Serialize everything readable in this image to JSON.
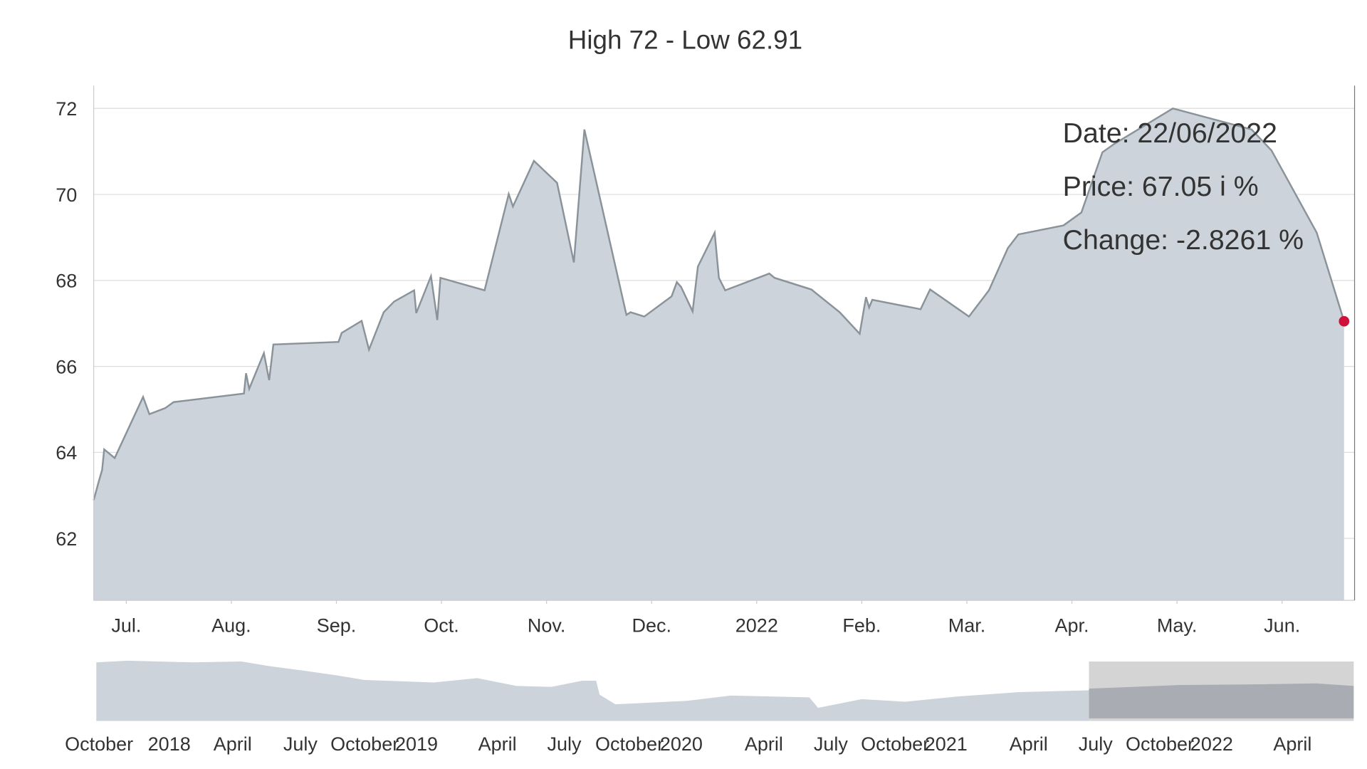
{
  "chart_data": {
    "type": "area",
    "title": "High 72 - Low 62.91",
    "x": [
      6.69,
      6.74,
      6.77,
      6.79,
      6.89,
      7.16,
      7.22,
      7.37,
      7.45,
      8.12,
      8.14,
      8.17,
      8.31,
      8.36,
      8.4,
      9.02,
      9.05,
      9.24,
      9.31,
      9.45,
      9.55,
      9.74,
      9.76,
      9.9,
      9.96,
      9.99,
      10.41,
      10.64,
      10.68,
      10.88,
      11.1,
      11.26,
      11.36,
      11.76,
      11.8,
      11.93,
      12.19,
      12.24,
      12.28,
      12.39,
      12.44,
      12.6,
      12.64,
      12.7,
      13.12,
      13.17,
      13.52,
      13.79,
      13.98,
      14.04,
      14.07,
      14.1,
      14.56,
      14.65,
      15.02,
      15.21,
      15.39,
      15.49,
      15.92,
      16.09,
      16.29,
      16.4,
      16.96,
      17.71,
      17.9,
      18.33,
      18.59
    ],
    "series": [
      {
        "name": "Price",
        "color": "#8a9399",
        "values": [
          62.89,
          63.34,
          63.59,
          64.07,
          63.87,
          65.29,
          64.89,
          65.03,
          65.17,
          65.37,
          65.84,
          65.48,
          66.31,
          65.68,
          66.51,
          66.57,
          66.78,
          67.06,
          66.39,
          67.26,
          67.51,
          67.77,
          67.24,
          68.1,
          67.08,
          68.06,
          67.77,
          70.01,
          69.72,
          70.78,
          70.27,
          68.42,
          71.51,
          67.2,
          67.26,
          67.16,
          67.63,
          67.96,
          67.85,
          67.28,
          68.32,
          69.11,
          68.06,
          67.77,
          68.16,
          68.06,
          67.79,
          67.26,
          66.76,
          67.61,
          67.37,
          67.55,
          67.33,
          67.79,
          67.16,
          67.77,
          68.75,
          69.07,
          69.28,
          69.58,
          70.98,
          71.17,
          72.0,
          71.51,
          71.02,
          69.11,
          67.05
        ]
      }
    ],
    "xlim": [
      6.69,
      18.69
    ],
    "xticks": [
      {
        "value": 7,
        "label": "Jul."
      },
      {
        "value": 8,
        "label": "Aug."
      },
      {
        "value": 9,
        "label": "Sep."
      },
      {
        "value": 10,
        "label": "Oct."
      },
      {
        "value": 11,
        "label": "Nov."
      },
      {
        "value": 12,
        "label": "Dec."
      },
      {
        "value": 13,
        "label": "2022"
      },
      {
        "value": 14,
        "label": "Feb."
      },
      {
        "value": 15,
        "label": "Mar."
      },
      {
        "value": 16,
        "label": "Apr."
      },
      {
        "value": 17,
        "label": "May."
      },
      {
        "value": 18,
        "label": "Jun."
      }
    ],
    "ylim": [
      60.56,
      72.53
    ],
    "yticks": [
      62,
      64,
      66,
      68,
      70,
      72
    ],
    "grid": true,
    "tooltip": [
      "Date: 22/06/2022",
      "Price: 67.05 i %",
      "Change: -2.8261 %"
    ],
    "navigator_labels": [
      "October",
      "2018",
      "April",
      "July",
      "October",
      "2019",
      "April",
      "July",
      "October",
      "2020",
      "April",
      "July",
      "October",
      "2021",
      "April",
      "July",
      "October",
      "2022",
      "April"
    ]
  }
}
